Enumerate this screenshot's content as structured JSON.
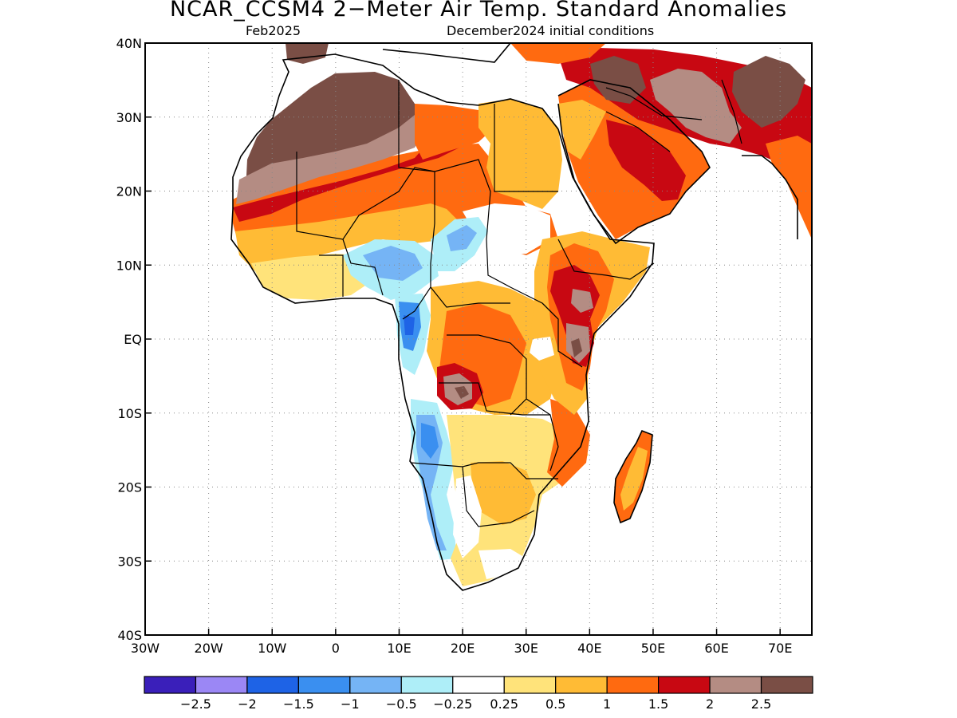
{
  "title": "NCAR_CCSM4 2−Meter Air Temp. Standard Anomalies",
  "subtitle_left": "Feb2025",
  "subtitle_right": "December2024 initial conditions",
  "map": {
    "lon_range": [
      -30,
      75
    ],
    "lat_range": [
      -40,
      40
    ],
    "x_ticks": [
      {
        "lon": -30,
        "label": "30W"
      },
      {
        "lon": -20,
        "label": "20W"
      },
      {
        "lon": -10,
        "label": "10W"
      },
      {
        "lon": 0,
        "label": "0"
      },
      {
        "lon": 10,
        "label": "10E"
      },
      {
        "lon": 20,
        "label": "20E"
      },
      {
        "lon": 30,
        "label": "30E"
      },
      {
        "lon": 40,
        "label": "40E"
      },
      {
        "lon": 50,
        "label": "50E"
      },
      {
        "lon": 60,
        "label": "60E"
      },
      {
        "lon": 70,
        "label": "70E"
      }
    ],
    "y_ticks": [
      {
        "lat": 40,
        "label": "40N"
      },
      {
        "lat": 30,
        "label": "30N"
      },
      {
        "lat": 20,
        "label": "20N"
      },
      {
        "lat": 10,
        "label": "10N"
      },
      {
        "lat": 0,
        "label": "EQ"
      },
      {
        "lat": -10,
        "label": "10S"
      },
      {
        "lat": -20,
        "label": "20S"
      },
      {
        "lat": -30,
        "label": "30S"
      },
      {
        "lat": -40,
        "label": "40S"
      }
    ],
    "grid": "dotted"
  },
  "colorbar": {
    "colors": [
      "#3a1fba",
      "#9b87f5",
      "#1e63e6",
      "#3a8ff0",
      "#75b4f5",
      "#aeeef8",
      "#ffffff",
      "#ffe37a",
      "#ffbb35",
      "#ff6a10",
      "#c80812",
      "#b48c83",
      "#7a4e45"
    ],
    "labels": [
      "−2.5",
      "−2",
      "−1.5",
      "−1",
      "−0.5",
      "−0.25",
      "0.25",
      "0.5",
      "1",
      "1.5",
      "2",
      "2.5"
    ]
  },
  "anomaly_regions": [
    {
      "level": 2.5,
      "description": "western Sahara"
    },
    {
      "level": 2.5,
      "description": "Iran"
    },
    {
      "level": 2.5,
      "description": "Pakistan"
    },
    {
      "level": 2.0,
      "description": "Arabian Peninsula"
    },
    {
      "level": 1.5,
      "description": "Sahel band"
    },
    {
      "level": -1.5,
      "description": "Angola coast"
    },
    {
      "level": -1.0,
      "description": "Nigeria / Cameroon"
    },
    {
      "level": 2.0,
      "description": "East Africa highlands"
    }
  ]
}
